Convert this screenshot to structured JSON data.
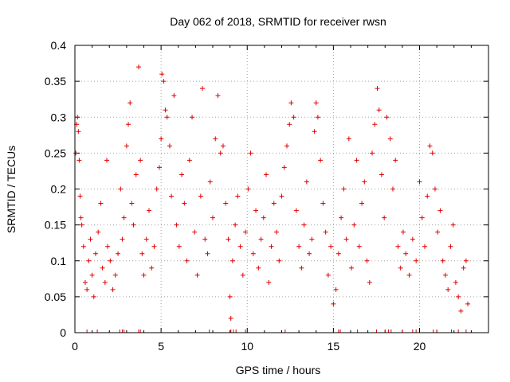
{
  "chart_data": {
    "type": "scatter",
    "title": "Day 062 of 2018, SRMTID for receiver rwsn",
    "xlabel": "GPS time / hours",
    "ylabel": "SRMTID / TECUs",
    "xlim": [
      0,
      24
    ],
    "ylim": [
      0,
      0.4
    ],
    "x_ticks": [
      0,
      5,
      10,
      15,
      20
    ],
    "y_ticks": [
      0,
      0.05,
      0.1,
      0.15,
      0.2,
      0.25,
      0.3,
      0.35,
      0.4
    ],
    "x_tick_labels": [
      "0",
      "5",
      "10",
      "15",
      "20"
    ],
    "y_tick_labels": [
      "0",
      "0.05",
      "0.1",
      "0.15",
      "0.2",
      "0.25",
      "0.3",
      "0.35",
      "0.4"
    ],
    "grid": true,
    "marker": "+",
    "color": "#e00000",
    "series": [
      {
        "name": "SRMTID",
        "points": [
          [
            0.05,
            0.25
          ],
          [
            0.1,
            0.29
          ],
          [
            0.15,
            0.3
          ],
          [
            0.2,
            0.28
          ],
          [
            0.25,
            0.24
          ],
          [
            0.3,
            0.19
          ],
          [
            0.35,
            0.16
          ],
          [
            0.4,
            0.15
          ],
          [
            0.5,
            0.12
          ],
          [
            0.6,
            0.07
          ],
          [
            0.7,
            0.06
          ],
          [
            0.8,
            0.1
          ],
          [
            0.9,
            0.13
          ],
          [
            1.0,
            0.08
          ],
          [
            1.1,
            0.05
          ],
          [
            1.2,
            0.11
          ],
          [
            1.35,
            0.14
          ],
          [
            1.5,
            0.18
          ],
          [
            1.6,
            0.09
          ],
          [
            1.75,
            0.07
          ],
          [
            1.85,
            0.24
          ],
          [
            1.9,
            0.12
          ],
          [
            2.05,
            0.1
          ],
          [
            2.2,
            0.06
          ],
          [
            2.35,
            0.08
          ],
          [
            2.5,
            0.11
          ],
          [
            2.65,
            0.2
          ],
          [
            2.75,
            0.13
          ],
          [
            2.85,
            0.16
          ],
          [
            3.0,
            0.26
          ],
          [
            3.1,
            0.29
          ],
          [
            3.2,
            0.32
          ],
          [
            3.3,
            0.18
          ],
          [
            3.4,
            0.15
          ],
          [
            3.55,
            0.22
          ],
          [
            3.7,
            0.37
          ],
          [
            3.8,
            0.24
          ],
          [
            3.9,
            0.11
          ],
          [
            4.0,
            0.08
          ],
          [
            4.15,
            0.13
          ],
          [
            4.3,
            0.17
          ],
          [
            4.45,
            0.09
          ],
          [
            4.6,
            0.12
          ],
          [
            4.75,
            0.2
          ],
          [
            4.9,
            0.23
          ],
          [
            5.0,
            0.27
          ],
          [
            5.05,
            0.36
          ],
          [
            5.15,
            0.35
          ],
          [
            5.25,
            0.31
          ],
          [
            5.35,
            0.3
          ],
          [
            5.5,
            0.26
          ],
          [
            5.6,
            0.19
          ],
          [
            5.75,
            0.33
          ],
          [
            5.9,
            0.15
          ],
          [
            6.05,
            0.12
          ],
          [
            6.2,
            0.22
          ],
          [
            6.35,
            0.18
          ],
          [
            6.5,
            0.1
          ],
          [
            6.65,
            0.24
          ],
          [
            6.8,
            0.3
          ],
          [
            6.95,
            0.14
          ],
          [
            7.1,
            0.08
          ],
          [
            7.3,
            0.19
          ],
          [
            7.4,
            0.34
          ],
          [
            7.55,
            0.13
          ],
          [
            7.7,
            0.11
          ],
          [
            7.85,
            0.21
          ],
          [
            8.0,
            0.16
          ],
          [
            8.15,
            0.27
          ],
          [
            8.3,
            0.33
          ],
          [
            8.45,
            0.25
          ],
          [
            8.6,
            0.26
          ],
          [
            8.75,
            0.18
          ],
          [
            8.9,
            0.13
          ],
          [
            9.0,
            0.05
          ],
          [
            9.05,
            0.02
          ],
          [
            9.15,
            0.1
          ],
          [
            9.3,
            0.15
          ],
          [
            9.45,
            0.19
          ],
          [
            9.6,
            0.12
          ],
          [
            9.75,
            0.08
          ],
          [
            9.9,
            0.14
          ],
          [
            10.05,
            0.2
          ],
          [
            10.2,
            0.25
          ],
          [
            10.35,
            0.11
          ],
          [
            10.5,
            0.17
          ],
          [
            10.65,
            0.09
          ],
          [
            10.8,
            0.13
          ],
          [
            10.95,
            0.16
          ],
          [
            11.1,
            0.22
          ],
          [
            11.25,
            0.07
          ],
          [
            11.4,
            0.12
          ],
          [
            11.55,
            0.18
          ],
          [
            11.7,
            0.14
          ],
          [
            11.85,
            0.1
          ],
          [
            12.0,
            0.19
          ],
          [
            12.15,
            0.23
          ],
          [
            12.3,
            0.26
          ],
          [
            12.45,
            0.29
          ],
          [
            12.55,
            0.32
          ],
          [
            12.7,
            0.3
          ],
          [
            12.85,
            0.17
          ],
          [
            13.0,
            0.12
          ],
          [
            13.15,
            0.09
          ],
          [
            13.3,
            0.15
          ],
          [
            13.45,
            0.21
          ],
          [
            13.6,
            0.11
          ],
          [
            13.75,
            0.13
          ],
          [
            13.9,
            0.28
          ],
          [
            14.0,
            0.32
          ],
          [
            14.1,
            0.3
          ],
          [
            14.25,
            0.24
          ],
          [
            14.4,
            0.18
          ],
          [
            14.55,
            0.14
          ],
          [
            14.7,
            0.08
          ],
          [
            14.85,
            0.12
          ],
          [
            15.0,
            0.04
          ],
          [
            15.15,
            0.06
          ],
          [
            15.3,
            0.11
          ],
          [
            15.45,
            0.16
          ],
          [
            15.6,
            0.2
          ],
          [
            15.75,
            0.13
          ],
          [
            15.9,
            0.27
          ],
          [
            16.05,
            0.09
          ],
          [
            16.2,
            0.15
          ],
          [
            16.35,
            0.24
          ],
          [
            16.5,
            0.12
          ],
          [
            16.65,
            0.18
          ],
          [
            16.8,
            0.21
          ],
          [
            16.95,
            0.1
          ],
          [
            17.1,
            0.07
          ],
          [
            17.25,
            0.25
          ],
          [
            17.4,
            0.29
          ],
          [
            17.55,
            0.34
          ],
          [
            17.65,
            0.31
          ],
          [
            17.8,
            0.22
          ],
          [
            17.95,
            0.16
          ],
          [
            18.1,
            0.3
          ],
          [
            18.3,
            0.27
          ],
          [
            18.45,
            0.2
          ],
          [
            18.6,
            0.24
          ],
          [
            18.75,
            0.12
          ],
          [
            18.9,
            0.09
          ],
          [
            19.05,
            0.14
          ],
          [
            19.2,
            0.11
          ],
          [
            19.4,
            0.08
          ],
          [
            19.6,
            0.13
          ],
          [
            19.8,
            0.1
          ],
          [
            20.0,
            0.21
          ],
          [
            20.15,
            0.16
          ],
          [
            20.3,
            0.12
          ],
          [
            20.45,
            0.19
          ],
          [
            20.6,
            0.26
          ],
          [
            20.75,
            0.25
          ],
          [
            20.9,
            0.2
          ],
          [
            21.05,
            0.14
          ],
          [
            21.2,
            0.17
          ],
          [
            21.35,
            0.1
          ],
          [
            21.5,
            0.08
          ],
          [
            21.65,
            0.06
          ],
          [
            21.8,
            0.12
          ],
          [
            21.95,
            0.15
          ],
          [
            22.1,
            0.07
          ],
          [
            22.25,
            0.05
          ],
          [
            22.4,
            0.03
          ],
          [
            22.55,
            0.09
          ],
          [
            22.7,
            0.1
          ],
          [
            22.8,
            0.04
          ]
        ]
      }
    ],
    "zero_points_x": [
      0.7,
      1.3,
      2.6,
      2.75,
      2.85,
      3.7,
      3.8,
      7.8,
      9.05,
      9.2,
      9.35,
      9.9,
      12.2,
      15.3,
      15.4,
      16.4,
      17.5,
      18.0,
      18.2,
      18.35,
      19.0,
      19.6,
      19.8,
      20.8,
      21.0,
      21.85,
      22.25,
      22.7
    ]
  }
}
